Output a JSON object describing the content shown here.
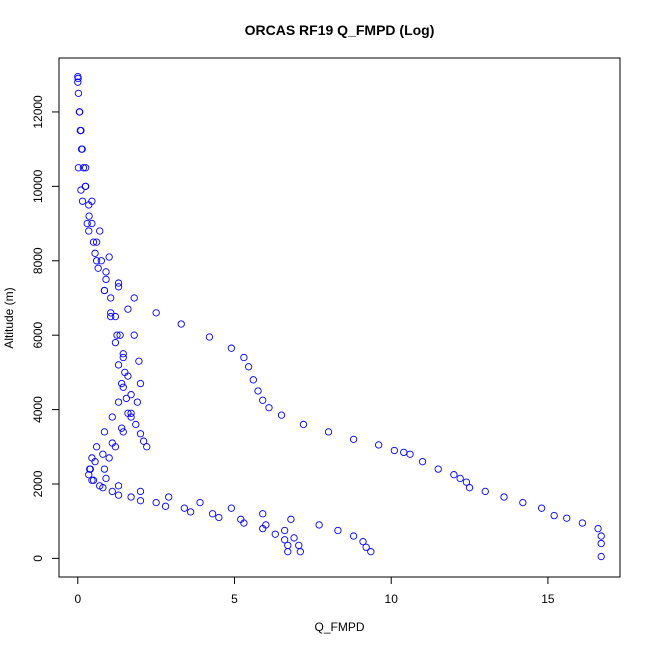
{
  "chart_data": {
    "type": "scatter",
    "title": "ORCAS RF19 Q_FMPD (Log)",
    "xlabel": "Q_FMPD",
    "ylabel": "Altitude (m)",
    "xlim": [
      -0.6,
      17.3
    ],
    "ylim": [
      -500,
      13450
    ],
    "xticks": [
      0,
      5,
      10,
      15
    ],
    "yticks": [
      0,
      2000,
      4000,
      6000,
      8000,
      10000,
      12000
    ],
    "marker": "open-circle",
    "grid": false,
    "legend": "none",
    "color": "#0000ff",
    "x": [
      0.0,
      0.02,
      0.05,
      0.08,
      0.12,
      0.18,
      0.25,
      0.35,
      0.45,
      0.6,
      0.75,
      0.9,
      1.05,
      1.2,
      1.35,
      1.45,
      1.5,
      1.45,
      1.3,
      1.1,
      0.85,
      0.6,
      0.45,
      0.38,
      0.5,
      0.8,
      1.3,
      2.0,
      2.8,
      3.6,
      4.5,
      5.3,
      5.9,
      6.3,
      6.6,
      6.7,
      6.7,
      0.01,
      0.06,
      0.14,
      0.24,
      0.36,
      0.5,
      0.65,
      0.85,
      1.05,
      1.25,
      1.45,
      1.6,
      1.7,
      1.6,
      1.4,
      1.1,
      0.8,
      0.55,
      0.4,
      0.35,
      0.45,
      0.7,
      1.1,
      1.7,
      2.5,
      3.4,
      4.3,
      5.2,
      6.0,
      6.6,
      6.9,
      7.05,
      7.1,
      0.0,
      0.1,
      0.25,
      0.45,
      0.7,
      1.0,
      1.3,
      1.6,
      1.8,
      1.95,
      2.0,
      1.9,
      1.7,
      1.45,
      1.2,
      1.0,
      0.85,
      0.9,
      1.3,
      2.0,
      2.9,
      3.9,
      4.9,
      5.9,
      6.8,
      7.7,
      8.3,
      8.8,
      9.1,
      9.2,
      9.35,
      0.1,
      0.3,
      0.55,
      0.9,
      1.3,
      1.8,
      2.5,
      3.3,
      4.2,
      4.9,
      5.3,
      5.45,
      5.6,
      5.75,
      5.9,
      6.1,
      6.5,
      7.2,
      8.0,
      8.8,
      9.6,
      10.1,
      10.4,
      10.6,
      11.0,
      11.5,
      12.0,
      12.2,
      12.4,
      12.5,
      13.0,
      13.6,
      14.2,
      14.8,
      15.2,
      15.6,
      16.1,
      16.6,
      16.7,
      16.7,
      16.7,
      0.02,
      0.15,
      0.35,
      0.6,
      0.85,
      1.05,
      1.2,
      1.3,
      1.4,
      1.55,
      1.7,
      1.85,
      2.0,
      2.1,
      2.2
    ],
    "y": [
      12950,
      12500,
      12000,
      11500,
      11000,
      10500,
      10000,
      9500,
      9000,
      8500,
      8000,
      7500,
      7000,
      6500,
      6000,
      5500,
      5000,
      4600,
      4200,
      3800,
      3400,
      3000,
      2700,
      2400,
      2100,
      1900,
      1700,
      1550,
      1400,
      1250,
      1100,
      950,
      800,
      650,
      500,
      350,
      180,
      12900,
      12000,
      11000,
      10000,
      9200,
      8500,
      7800,
      7200,
      6600,
      6000,
      5400,
      4900,
      4400,
      3900,
      3500,
      3100,
      2800,
      2600,
      2400,
      2250,
      2100,
      1950,
      1800,
      1650,
      1500,
      1350,
      1200,
      1050,
      900,
      750,
      550,
      350,
      180,
      12800,
      11500,
      10500,
      9600,
      8800,
      8100,
      7400,
      6700,
      6000,
      5300,
      4700,
      4200,
      3800,
      3400,
      3000,
      2700,
      2400,
      2150,
      1950,
      1800,
      1650,
      1500,
      1350,
      1200,
      1050,
      900,
      750,
      600,
      450,
      300,
      180,
      9900,
      9000,
      8200,
      7700,
      7300,
      7000,
      6600,
      6300,
      5950,
      5650,
      5400,
      5150,
      4800,
      4500,
      4250,
      4050,
      3850,
      3600,
      3400,
      3200,
      3050,
      2900,
      2850,
      2800,
      2600,
      2400,
      2250,
      2150,
      2050,
      1900,
      1800,
      1650,
      1500,
      1350,
      1150,
      1080,
      950,
      800,
      600,
      400,
      50,
      10500,
      9600,
      8800,
      8000,
      7200,
      6500,
      5800,
      5200,
      4700,
      4300,
      3900,
      3600,
      3350,
      3150,
      3000
    ]
  }
}
